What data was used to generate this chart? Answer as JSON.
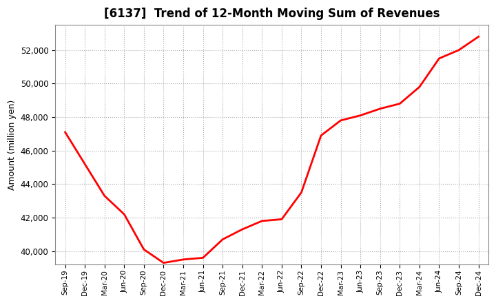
{
  "title": "[6137]  Trend of 12-Month Moving Sum of Revenues",
  "ylabel": "Amount (million yen)",
  "line_color": "#FF0000",
  "line_width": 2.0,
  "background_color": "#FFFFFF",
  "plot_bg_color": "#FFFFFF",
  "grid_color": "#AAAAAA",
  "ylim": [
    39200,
    53500
  ],
  "yticks": [
    40000,
    42000,
    44000,
    46000,
    48000,
    50000,
    52000
  ],
  "x_labels": [
    "Sep-19",
    "Dec-19",
    "Mar-20",
    "Jun-20",
    "Sep-20",
    "Dec-20",
    "Mar-21",
    "Jun-21",
    "Sep-21",
    "Dec-21",
    "Mar-22",
    "Jun-22",
    "Sep-22",
    "Dec-22",
    "Mar-23",
    "Jun-23",
    "Sep-23",
    "Dec-23",
    "Mar-24",
    "Jun-24",
    "Sep-24",
    "Dec-24"
  ],
  "values": [
    47100,
    45200,
    43300,
    42200,
    40100,
    39300,
    39500,
    39600,
    40700,
    41300,
    41800,
    41900,
    43500,
    46900,
    47800,
    48100,
    48500,
    48800,
    49800,
    51500,
    52000,
    52800
  ]
}
